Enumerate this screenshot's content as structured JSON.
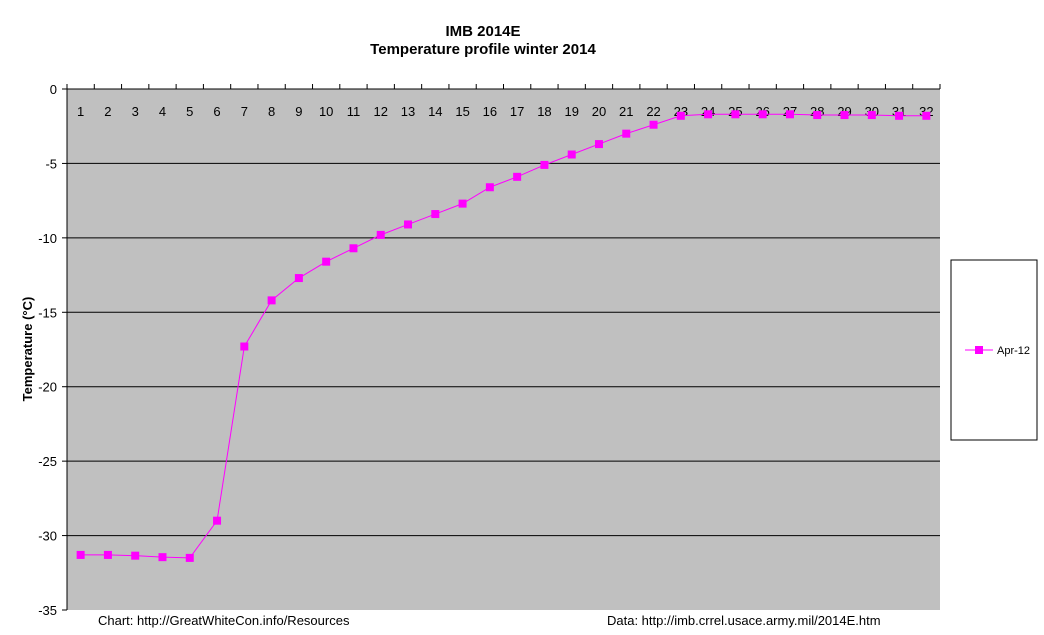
{
  "chart_data": {
    "type": "line",
    "title": "IMB 2014E",
    "subtitle": "Temperature profile winter 2014",
    "ylabel": "Temperature (°C)",
    "xlabel": "",
    "ylim": [
      -35,
      0
    ],
    "yticks": [
      0,
      -5,
      -10,
      -15,
      -20,
      -25,
      -30,
      -35
    ],
    "grid": true,
    "legend_position": "right",
    "categories": [
      "1",
      "2",
      "3",
      "4",
      "5",
      "6",
      "7",
      "8",
      "9",
      "10",
      "11",
      "12",
      "13",
      "14",
      "15",
      "16",
      "17",
      "18",
      "19",
      "20",
      "21",
      "22",
      "23",
      "24",
      "25",
      "26",
      "27",
      "28",
      "29",
      "30",
      "31",
      "32"
    ],
    "series": [
      {
        "name": "Apr-12",
        "color": "#ff00ff",
        "values": [
          -31.3,
          -31.3,
          -31.35,
          -31.45,
          -31.5,
          -29.0,
          -17.3,
          -14.2,
          -12.7,
          -11.6,
          -10.7,
          -9.8,
          -9.1,
          -8.4,
          -7.7,
          -6.6,
          -5.9,
          -5.1,
          -4.4,
          -3.7,
          -3.0,
          -2.4,
          -1.8,
          -1.7,
          -1.7,
          -1.7,
          -1.7,
          -1.75,
          -1.75,
          -1.75,
          -1.8,
          -1.8
        ]
      }
    ],
    "plot_background": "#c0c0c0",
    "gridline_color": "#000000"
  },
  "footer": {
    "chart_source": "Chart: http://GreatWhiteCon.info/Resources",
    "data_source": "Data: http://imb.crrel.usace.army.mil/2014E.htm"
  }
}
